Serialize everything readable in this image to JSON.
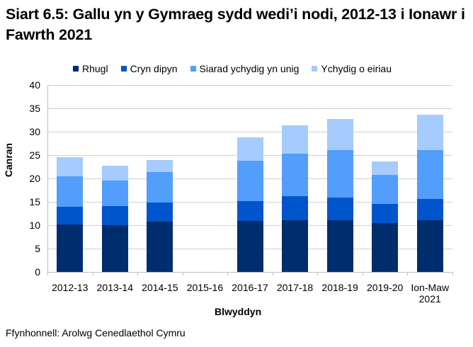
{
  "title": "Siart 6.5: Gallu yn y Gymraeg sydd wedi’i nodi, 2012-13 i Ionawr i Fawrth 2021",
  "colors": {
    "Rhugl": "#002d6e",
    "Cryn dipyn": "#0055cc",
    "Siarad ychydig yn unig": "#539dfb",
    "Ychydig o eiriau": "#a6cbfd"
  },
  "legend": [
    "Rhugl",
    "Cryn dipyn",
    "Siarad ychydig yn unig",
    "Ychydig o eiriau"
  ],
  "y_ticks": [
    "0",
    "5",
    "10",
    "15",
    "20",
    "25",
    "30",
    "35",
    "40"
  ],
  "x_labels": [
    "2012-13",
    "2013-14",
    "2014-15",
    "2015-16",
    "2016-17",
    "2017-18",
    "2018-19",
    "2019-20",
    "Ion-Maw 2021"
  ],
  "ylabel": "Canran",
  "xlabel": "Blwyddyn",
  "source": "Ffynhonnell: Arolwg Cenedlaethol Cymru",
  "chart_data": {
    "type": "bar",
    "stacked": true,
    "title": "Siart 6.5: Gallu yn y Gymraeg sydd wedi’i nodi, 2012-13 i Ionawr i Fawrth 2021",
    "xlabel": "Blwyddyn",
    "ylabel": "Canran",
    "ylim": [
      0,
      40
    ],
    "yticks": [
      0,
      5,
      10,
      15,
      20,
      25,
      30,
      35,
      40
    ],
    "grid": true,
    "legend_position": "top",
    "categories": [
      "2012-13",
      "2013-14",
      "2014-15",
      "2015-16",
      "2016-17",
      "2017-18",
      "2018-19",
      "2019-20",
      "Ion-Maw 2021"
    ],
    "series": [
      {
        "name": "Rhugl",
        "values": [
          10.2,
          10.0,
          10.8,
          null,
          10.9,
          11.1,
          11.0,
          10.5,
          11.0
        ]
      },
      {
        "name": "Cryn dipyn",
        "values": [
          3.7,
          4.1,
          4.1,
          null,
          4.3,
          5.1,
          4.9,
          4.0,
          4.6
        ]
      },
      {
        "name": "Siarad ychydig yn unig",
        "values": [
          6.5,
          5.5,
          6.5,
          null,
          8.6,
          9.1,
          10.2,
          6.2,
          10.4
        ]
      },
      {
        "name": "Ychydig o eiriau",
        "values": [
          4.1,
          3.1,
          2.5,
          null,
          5.0,
          6.0,
          6.6,
          3.0,
          7.7
        ]
      }
    ],
    "totals": [
      24.5,
      22.7,
      23.9,
      null,
      28.8,
      31.3,
      32.7,
      23.7,
      33.7
    ]
  }
}
